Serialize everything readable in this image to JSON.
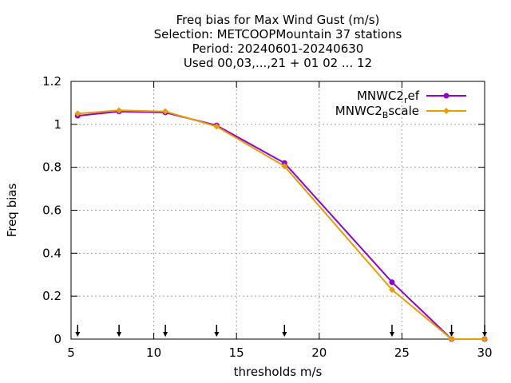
{
  "chart_data": {
    "type": "line",
    "title": [
      "Freq bias  for Max Wind Gust (m/s)",
      "Selection: METCOOPMountain     37 stations",
      "Period: 20240601-20240630",
      "Used 00,03,...,21 + 01 02 ... 12"
    ],
    "xlabel": "thresholds m/s",
    "ylabel": "Freq bias",
    "xlim": [
      5,
      30
    ],
    "ylim": [
      0,
      1.2
    ],
    "xticks": [
      5,
      10,
      15,
      20,
      25,
      30
    ],
    "xtick_labels": [
      "5",
      "10",
      "15",
      "20",
      "25",
      "30"
    ],
    "yticks": [
      0,
      0.2,
      0.4,
      0.6,
      0.8,
      1,
      1.2
    ],
    "ytick_labels": [
      "0",
      "0.2",
      "0.4",
      "0.6",
      "0.8",
      "1",
      "1.2"
    ],
    "grid": true,
    "legend_position": "top-right",
    "threshold_markers": [
      5.4,
      7.9,
      10.7,
      13.8,
      17.9,
      24.4,
      28.0,
      30.0
    ],
    "series": [
      {
        "name": "MNWC2",
        "name_sub": "r",
        "name_rest": "ef",
        "color": "#9400d3",
        "x": [
          5.4,
          7.9,
          10.7,
          13.8,
          17.9,
          24.4,
          28.0,
          30.0
        ],
        "y": [
          1.04,
          1.06,
          1.055,
          0.995,
          0.82,
          0.265,
          0.0,
          0.0
        ]
      },
      {
        "name": "MNWC2",
        "name_sub": "B",
        "name_rest": "scale",
        "color": "#e69f00",
        "x": [
          5.4,
          7.9,
          10.7,
          13.8,
          17.9,
          24.4,
          28.0,
          30.0
        ],
        "y": [
          1.05,
          1.065,
          1.06,
          0.99,
          0.805,
          0.23,
          0.0,
          0.0
        ]
      }
    ]
  }
}
